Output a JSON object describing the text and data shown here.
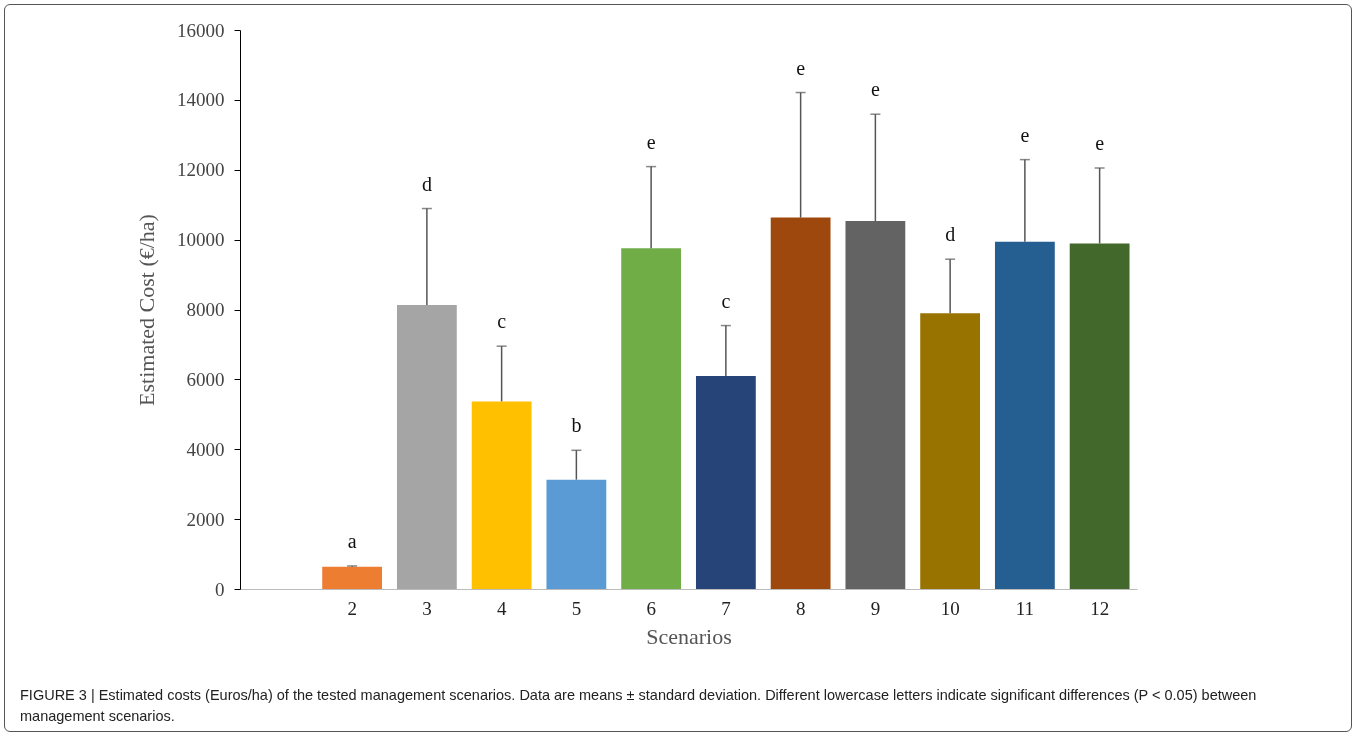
{
  "chart_data": {
    "type": "bar",
    "xlabel": "Scenarios",
    "ylabel": "Estimated Cost (€/ha)",
    "categories": [
      null,
      "2",
      "3",
      "4",
      "5",
      "6",
      "7",
      "8",
      "9",
      "10",
      "11",
      "12"
    ],
    "values": [
      null,
      640,
      8130,
      5370,
      3130,
      9750,
      6100,
      10630,
      10530,
      7890,
      9940,
      9890
    ],
    "errors": [
      null,
      [
        640,
        660
      ],
      [
        8130,
        10890
      ],
      [
        5370,
        6950
      ],
      [
        3130,
        3970
      ],
      [
        9750,
        12090
      ],
      [
        6100,
        7540
      ],
      [
        10630,
        14210
      ],
      [
        10530,
        13590
      ],
      [
        7890,
        9440
      ],
      [
        9940,
        12290
      ],
      [
        9890,
        12050
      ]
    ],
    "colors": [
      null,
      "#ed7d31",
      "#a5a5a5",
      "#ffc000",
      "#5b9bd5",
      "#70ad47",
      "#264478",
      "#9e480e",
      "#636363",
      "#997300",
      "#255e91",
      "#43682b"
    ],
    "ylim": [
      0,
      16000
    ],
    "yticks": [
      0,
      2000,
      4000,
      6000,
      8000,
      10000,
      12000,
      14000,
      16000
    ],
    "grid": false,
    "annotations": [
      {
        "text": "a",
        "x": "2",
        "y": 660
      },
      {
        "text": "d",
        "x": "3",
        "y": 10890
      },
      {
        "text": "c",
        "x": "4",
        "y": 6950
      },
      {
        "text": "b",
        "x": "5",
        "y": 3970
      },
      {
        "text": "e",
        "x": "6",
        "y": 12090
      },
      {
        "text": "c",
        "x": "7",
        "y": 7540
      },
      {
        "text": "e",
        "x": "8",
        "y": 14210
      },
      {
        "text": "e",
        "x": "9",
        "y": 13590
      },
      {
        "text": "d",
        "x": "10",
        "y": 9440
      },
      {
        "text": "e",
        "x": "11",
        "y": 12290
      },
      {
        "text": "e",
        "x": "12",
        "y": 12050
      },
      "FIGURE 3 | Estimated costs (Euros/ha) of the tested management scenarios. Data are means ± standard deviation. Different lowercase letters indicate significant differences (P < 0.05) between management scenarios."
    ]
  }
}
